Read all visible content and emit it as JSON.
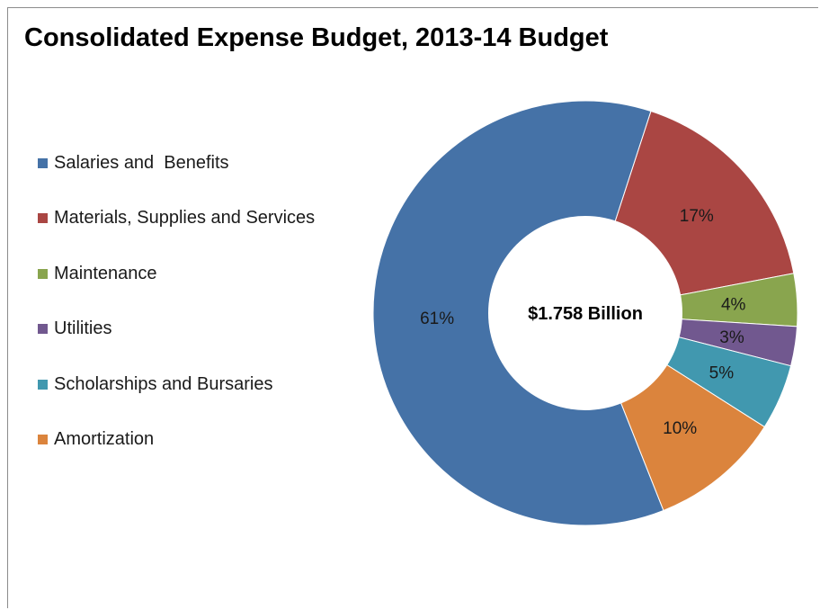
{
  "chart_data": {
    "type": "pie",
    "title": "Consolidated Expense Budget, 2013-14 Budget",
    "center_label": "$1.758 Billion",
    "legend_position": "left",
    "categories": [
      "Salaries and  Benefits",
      "Materials, Supplies and Services",
      "Maintenance",
      "Utilities",
      "Scholarships and Bursaries",
      "Amortization"
    ],
    "values": [
      61,
      17,
      4,
      3,
      5,
      10
    ],
    "value_labels": [
      "61%",
      "17%",
      "4%",
      "3%",
      "5%",
      "10%"
    ],
    "colors": [
      "#4572a7",
      "#aa4643",
      "#89a54e",
      "#71588f",
      "#4198af",
      "#db843d"
    ]
  }
}
